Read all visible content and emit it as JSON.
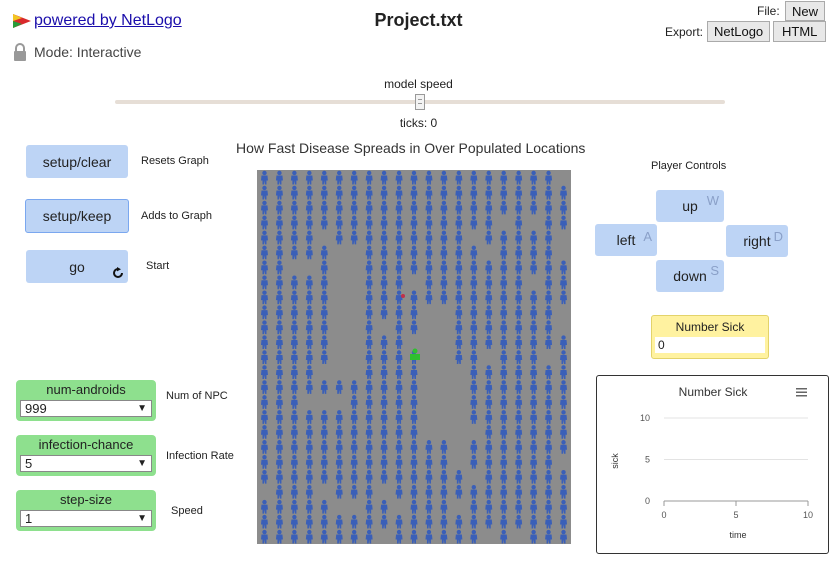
{
  "header": {
    "powered_by": "powered by NetLogo",
    "project_title": "Project.txt",
    "mode_label": "Mode: Interactive",
    "file_label": "File:",
    "new_button": "New",
    "export_label": "Export:",
    "export_netlogo": "NetLogo",
    "export_html": "HTML"
  },
  "speed": {
    "label": "model speed",
    "ticks_label": "ticks: 0"
  },
  "buttons": {
    "setup_clear": "setup/clear",
    "setup_clear_desc": "Resets Graph",
    "setup_keep": "setup/keep",
    "setup_keep_desc": "Adds to Graph",
    "go": "go",
    "go_desc": "Start"
  },
  "world_title": "How Fast Disease Spreads in Over Populated Locations",
  "player_controls": {
    "title": "Player Controls",
    "up": "up",
    "up_key": "W",
    "left": "left",
    "left_key": "A",
    "right": "right",
    "right_key": "D",
    "down": "down",
    "down_key": "S"
  },
  "monitor": {
    "name": "Number Sick",
    "value": "0"
  },
  "sliders": [
    {
      "name": "num-androids",
      "value": "999",
      "desc": "Num of NPC"
    },
    {
      "name": "infection-chance",
      "value": "5",
      "desc": "Infection Rate"
    },
    {
      "name": "step-size",
      "value": "1",
      "desc": "Speed"
    }
  ],
  "chart_data": {
    "type": "line",
    "title": "Number Sick",
    "xlabel": "time",
    "ylabel": "sick",
    "xlim": [
      0,
      10
    ],
    "ylim": [
      0,
      10
    ],
    "xticks": [
      "0",
      "5",
      "10"
    ],
    "yticks": [
      "0",
      "5",
      "10"
    ],
    "series": [],
    "grid": true
  },
  "icons": {
    "logo": "netlogo-logo-icon",
    "lock": "lock-icon",
    "refresh": "forever-icon",
    "menu": "hamburger-menu-icon",
    "dropdown": "dropdown-arrow-icon"
  },
  "colors": {
    "button_bg": "#bdd4f5",
    "slider_bg": "#8ee08e",
    "monitor_bg": "#fff2a0",
    "world_bg": "#8c8c8c",
    "agent": "#3a5fb8"
  }
}
